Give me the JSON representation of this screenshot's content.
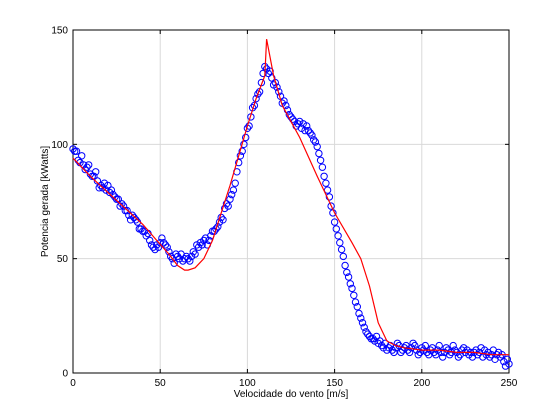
{
  "chart_data": {
    "type": "scatter",
    "title": "",
    "xlabel": "Velocidade do vento [m/s]",
    "ylabel": "Potencia gerada [kWatts]",
    "xlim": [
      0,
      250
    ],
    "ylim": [
      0,
      150
    ],
    "xticks": [
      "0",
      "50",
      "100",
      "150",
      "200",
      "250"
    ],
    "yticks": [
      "0",
      "50",
      "100",
      "150"
    ],
    "grid": true,
    "legend": "none",
    "colors": {
      "scatter": "#0000ff",
      "line": "#ff0000",
      "grid": "#d9d9d9",
      "axes": "#000000"
    },
    "series": [
      {
        "type": "scatter",
        "marker": "circle",
        "points": [
          [
            0,
            98
          ],
          [
            1,
            97
          ],
          [
            2,
            97
          ],
          [
            3,
            93
          ],
          [
            4,
            92
          ],
          [
            5,
            95
          ],
          [
            6,
            91
          ],
          [
            7,
            89
          ],
          [
            8,
            90
          ],
          [
            9,
            91
          ],
          [
            10,
            87
          ],
          [
            11,
            86
          ],
          [
            12,
            86
          ],
          [
            13,
            88
          ],
          [
            14,
            84
          ],
          [
            15,
            81
          ],
          [
            16,
            82
          ],
          [
            17,
            81
          ],
          [
            18,
            83
          ],
          [
            19,
            80
          ],
          [
            20,
            82
          ],
          [
            21,
            79
          ],
          [
            22,
            80
          ],
          [
            23,
            78
          ],
          [
            24,
            77
          ],
          [
            25,
            76
          ],
          [
            26,
            76
          ],
          [
            27,
            73
          ],
          [
            28,
            74
          ],
          [
            29,
            73
          ],
          [
            30,
            71
          ],
          [
            31,
            71
          ],
          [
            32,
            69
          ],
          [
            33,
            67
          ],
          [
            34,
            69
          ],
          [
            35,
            68
          ],
          [
            36,
            67
          ],
          [
            37,
            66
          ],
          [
            38,
            63
          ],
          [
            39,
            63
          ],
          [
            40,
            62
          ],
          [
            41,
            62
          ],
          [
            42,
            60
          ],
          [
            43,
            61
          ],
          [
            44,
            58
          ],
          [
            45,
            56
          ],
          [
            46,
            55
          ],
          [
            47,
            54
          ],
          [
            48,
            56
          ],
          [
            49,
            55
          ],
          [
            50,
            57
          ],
          [
            51,
            59
          ],
          [
            52,
            57
          ],
          [
            53,
            56
          ],
          [
            54,
            55
          ],
          [
            55,
            53
          ],
          [
            56,
            51
          ],
          [
            57,
            50
          ],
          [
            58,
            48
          ],
          [
            59,
            52
          ],
          [
            60,
            51
          ],
          [
            61,
            50
          ],
          [
            62,
            52
          ],
          [
            63,
            49
          ],
          [
            64,
            50
          ],
          [
            65,
            51
          ],
          [
            66,
            50
          ],
          [
            67,
            49
          ],
          [
            68,
            51
          ],
          [
            69,
            53
          ],
          [
            70,
            52
          ],
          [
            71,
            56
          ],
          [
            72,
            55
          ],
          [
            73,
            57
          ],
          [
            74,
            56
          ],
          [
            75,
            58
          ],
          [
            76,
            59
          ],
          [
            77,
            56
          ],
          [
            78,
            58
          ],
          [
            79,
            60
          ],
          [
            80,
            62
          ],
          [
            81,
            62
          ],
          [
            82,
            63
          ],
          [
            83,
            64
          ],
          [
            84,
            66
          ],
          [
            85,
            68
          ],
          [
            86,
            67
          ],
          [
            87,
            72
          ],
          [
            88,
            74
          ],
          [
            89,
            73
          ],
          [
            90,
            76
          ],
          [
            91,
            78
          ],
          [
            92,
            80
          ],
          [
            93,
            83
          ],
          [
            94,
            88
          ],
          [
            95,
            92
          ],
          [
            96,
            95
          ],
          [
            97,
            97
          ],
          [
            98,
            100
          ],
          [
            99,
            103
          ],
          [
            100,
            107
          ],
          [
            101,
            108
          ],
          [
            102,
            112
          ],
          [
            103,
            116
          ],
          [
            104,
            117
          ],
          [
            105,
            120
          ],
          [
            106,
            122
          ],
          [
            107,
            123
          ],
          [
            108,
            127
          ],
          [
            109,
            131
          ],
          [
            110,
            134
          ],
          [
            111,
            133
          ],
          [
            112,
            131
          ],
          [
            113,
            132
          ],
          [
            114,
            129
          ],
          [
            115,
            126
          ],
          [
            116,
            127
          ],
          [
            117,
            125
          ],
          [
            118,
            123
          ],
          [
            119,
            121
          ],
          [
            120,
            118
          ],
          [
            121,
            119
          ],
          [
            122,
            117
          ],
          [
            123,
            115
          ],
          [
            124,
            113
          ],
          [
            125,
            112
          ],
          [
            126,
            111
          ],
          [
            127,
            110
          ],
          [
            128,
            108
          ],
          [
            129,
            109
          ],
          [
            130,
            110
          ],
          [
            131,
            107
          ],
          [
            132,
            109
          ],
          [
            133,
            106
          ],
          [
            134,
            108
          ],
          [
            135,
            106
          ],
          [
            136,
            105
          ],
          [
            137,
            104
          ],
          [
            138,
            102
          ],
          [
            139,
            101
          ],
          [
            140,
            99
          ],
          [
            141,
            96
          ],
          [
            142,
            93
          ],
          [
            143,
            90
          ],
          [
            144,
            86
          ],
          [
            145,
            83
          ],
          [
            146,
            80
          ],
          [
            147,
            77
          ],
          [
            148,
            73
          ],
          [
            149,
            70
          ],
          [
            150,
            66
          ],
          [
            151,
            63
          ],
          [
            152,
            60
          ],
          [
            153,
            57
          ],
          [
            154,
            54
          ],
          [
            155,
            51
          ],
          [
            156,
            47
          ],
          [
            157,
            44
          ],
          [
            158,
            42
          ],
          [
            159,
            39
          ],
          [
            160,
            37
          ],
          [
            161,
            34
          ],
          [
            162,
            31
          ],
          [
            163,
            29
          ],
          [
            164,
            26
          ],
          [
            165,
            24
          ],
          [
            166,
            22
          ],
          [
            167,
            20
          ],
          [
            168,
            18
          ],
          [
            169,
            17
          ],
          [
            170,
            16
          ],
          [
            171,
            15
          ],
          [
            172,
            15
          ],
          [
            173,
            14
          ],
          [
            174,
            16
          ],
          [
            175,
            13
          ],
          [
            176,
            14
          ],
          [
            177,
            12
          ],
          [
            178,
            11
          ],
          [
            179,
            13
          ],
          [
            180,
            10
          ],
          [
            181,
            11
          ],
          [
            182,
            12
          ],
          [
            183,
            10
          ],
          [
            184,
            9
          ],
          [
            185,
            11
          ],
          [
            186,
            13
          ],
          [
            187,
            12
          ],
          [
            188,
            9
          ],
          [
            189,
            10
          ],
          [
            190,
            11
          ],
          [
            191,
            12
          ],
          [
            192,
            10
          ],
          [
            193,
            9
          ],
          [
            194,
            11
          ],
          [
            195,
            13
          ],
          [
            196,
            12
          ],
          [
            197,
            10
          ],
          [
            198,
            8
          ],
          [
            199,
            9
          ],
          [
            200,
            11
          ],
          [
            201,
            10
          ],
          [
            202,
            12
          ],
          [
            203,
            9
          ],
          [
            204,
            8
          ],
          [
            205,
            10
          ],
          [
            206,
            11
          ],
          [
            207,
            9
          ],
          [
            208,
            8
          ],
          [
            209,
            10
          ],
          [
            210,
            12
          ],
          [
            211,
            9
          ],
          [
            212,
            7
          ],
          [
            213,
            9
          ],
          [
            214,
            11
          ],
          [
            215,
            10
          ],
          [
            216,
            8
          ],
          [
            217,
            9
          ],
          [
            218,
            12
          ],
          [
            219,
            10
          ],
          [
            220,
            9
          ],
          [
            221,
            7
          ],
          [
            222,
            8
          ],
          [
            223,
            10
          ],
          [
            224,
            11
          ],
          [
            225,
            9
          ],
          [
            226,
            10
          ],
          [
            227,
            8
          ],
          [
            228,
            9
          ],
          [
            229,
            7
          ],
          [
            230,
            9
          ],
          [
            231,
            10
          ],
          [
            232,
            8
          ],
          [
            233,
            9
          ],
          [
            234,
            11
          ],
          [
            235,
            7
          ],
          [
            236,
            10
          ],
          [
            237,
            8
          ],
          [
            238,
            9
          ],
          [
            239,
            7
          ],
          [
            240,
            8
          ],
          [
            241,
            10
          ],
          [
            242,
            6
          ],
          [
            243,
            8
          ],
          [
            244,
            9
          ],
          [
            245,
            7
          ],
          [
            246,
            8
          ],
          [
            247,
            5
          ],
          [
            248,
            3
          ],
          [
            249,
            6
          ],
          [
            250,
            4
          ]
        ]
      },
      {
        "type": "line",
        "points": [
          [
            0,
            94
          ],
          [
            10,
            86
          ],
          [
            20,
            79
          ],
          [
            30,
            72
          ],
          [
            40,
            65
          ],
          [
            48,
            58
          ],
          [
            55,
            52
          ],
          [
            60,
            47
          ],
          [
            64,
            45
          ],
          [
            66,
            45
          ],
          [
            70,
            46
          ],
          [
            75,
            50
          ],
          [
            80,
            58
          ],
          [
            85,
            70
          ],
          [
            90,
            82
          ],
          [
            95,
            95
          ],
          [
            100,
            108
          ],
          [
            105,
            120
          ],
          [
            110,
            130
          ],
          [
            111,
            146
          ],
          [
            113,
            138
          ],
          [
            115,
            130
          ],
          [
            120,
            117
          ],
          [
            130,
            103
          ],
          [
            140,
            86
          ],
          [
            150,
            70
          ],
          [
            160,
            57
          ],
          [
            165,
            50
          ],
          [
            170,
            38
          ],
          [
            175,
            22
          ],
          [
            180,
            14
          ],
          [
            185,
            12
          ],
          [
            190,
            11
          ],
          [
            200,
            10
          ],
          [
            210,
            10
          ],
          [
            220,
            9
          ],
          [
            230,
            9
          ],
          [
            240,
            8
          ],
          [
            250,
            8
          ]
        ]
      }
    ]
  }
}
